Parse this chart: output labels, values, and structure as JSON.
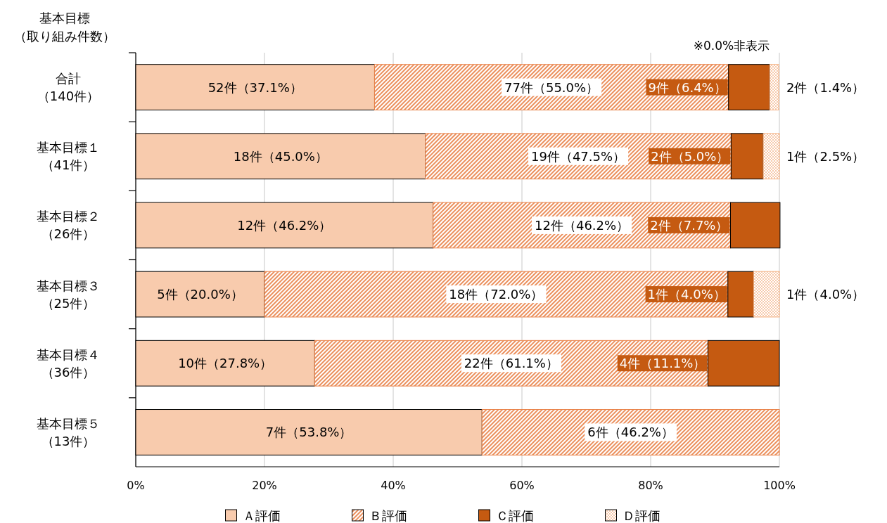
{
  "chart_data": {
    "type": "bar",
    "orientation": "horizontal",
    "stacked": true,
    "ylabel": "基本目標（取り組み件数）",
    "categories": [
      "合計（140件）",
      "基本目標１（41件）",
      "基本目標２（26件）",
      "基本目標３（25件）",
      "基本目標４（36件）",
      "基本目標５（13件）"
    ],
    "series": [
      {
        "name": "Ａ評価",
        "color": "#f8cbad",
        "values": [
          37.1,
          45.0,
          46.2,
          20.0,
          27.8,
          53.8
        ],
        "value_labels": [
          "52件（37.1%）",
          "18件（45.0%）",
          "12件（46.2%）",
          "5件（20.0%）",
          "10件（27.8%）",
          "7件（53.8%）"
        ]
      },
      {
        "name": "Ｂ評価",
        "color": "#e9834a",
        "values": [
          55.0,
          47.5,
          46.2,
          72.0,
          61.1,
          46.2
        ],
        "value_labels": [
          "77件（55.0%）",
          "19件（47.5%）",
          "12件（46.2%）",
          "18件（72.0%）",
          "22件（61.1%）",
          "6件（46.2%）"
        ]
      },
      {
        "name": "Ｃ評価",
        "color": "#c55a11",
        "values": [
          6.4,
          5.0,
          7.7,
          4.0,
          11.1,
          0
        ],
        "value_labels": [
          "9件（6.4%）",
          "2件（5.0%）",
          "2件（7.7%）",
          "1件（4.0%）",
          "4件（11.1%）",
          null
        ]
      },
      {
        "name": "Ｄ評価",
        "color": "#f4b183",
        "values": [
          1.4,
          2.5,
          0,
          4.0,
          0,
          0
        ],
        "value_labels": [
          "2件（1.4%）",
          "1件（2.5%）",
          null,
          "1件（4.0%）",
          null,
          null
        ]
      }
    ],
    "xlim": [
      0,
      100
    ],
    "xticks": [
      {
        "value": 0,
        "label": "0%"
      },
      {
        "value": 20,
        "label": "20%"
      },
      {
        "value": 40,
        "label": "40%"
      },
      {
        "value": 60,
        "label": "60%"
      },
      {
        "value": 80,
        "label": "80%"
      },
      {
        "value": 100,
        "label": "100%"
      }
    ],
    "grid": "x",
    "legend": "bottom",
    "annotations": [
      "※0.0%非表示"
    ]
  }
}
